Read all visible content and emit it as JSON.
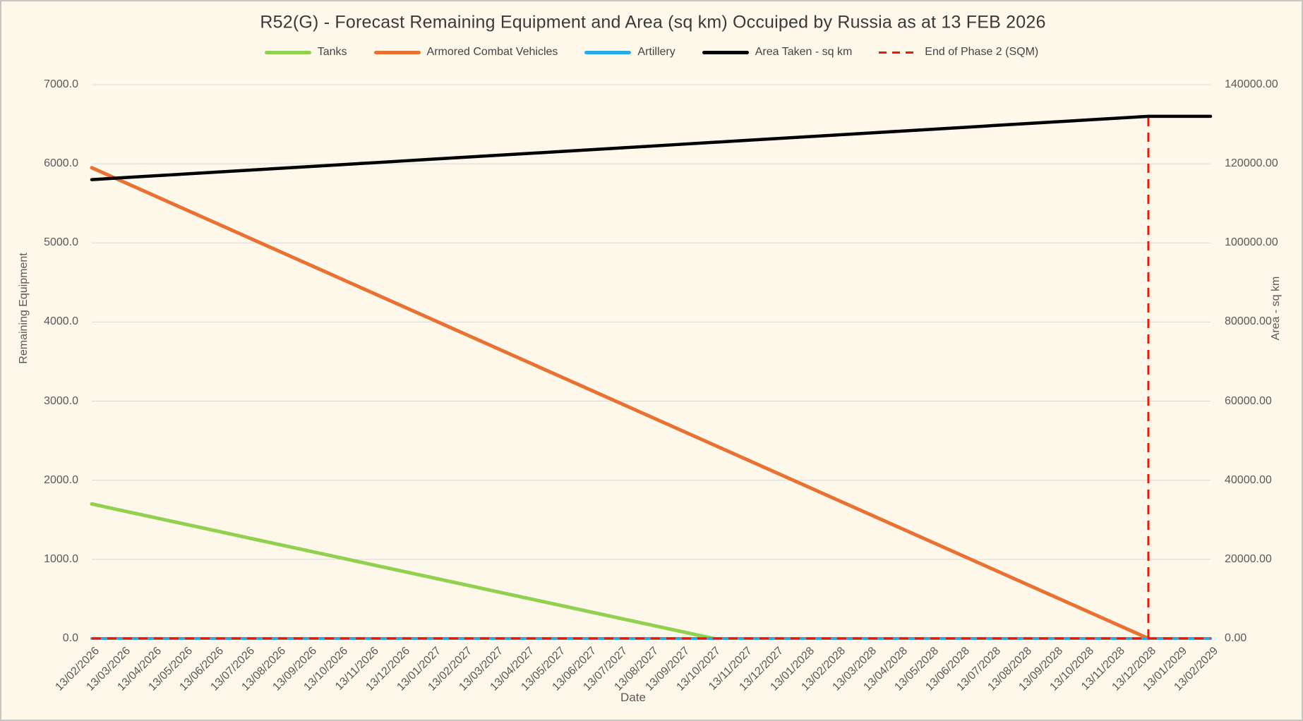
{
  "title": "R52(G) - Forecast Remaining Equipment and Area (sq km) Occuiped by Russia as at 13 FEB 2026",
  "legend": {
    "items": [
      {
        "label": "Tanks",
        "color": "#92D050",
        "dash": false
      },
      {
        "label": "Armored Combat Vehicles",
        "color": "#E97132",
        "dash": false
      },
      {
        "label": "Artillery",
        "color": "#29ABE2",
        "dash": false
      },
      {
        "label": "Area Taken - sq km",
        "color": "#000000",
        "dash": false
      },
      {
        "label": "End of Phase 2 (SQM)",
        "color": "#FF1100",
        "dash": true
      }
    ]
  },
  "axes": {
    "left": {
      "title": "Remaining Equipment",
      "tick_labels": [
        "0.0",
        "1000.0",
        "2000.0",
        "3000.0",
        "4000.0",
        "5000.0",
        "6000.0",
        "7000.0"
      ]
    },
    "right": {
      "title": "Area - sq km",
      "tick_labels": [
        "0.00",
        "20000.00",
        "40000.00",
        "60000.00",
        "80000.00",
        "100000.00",
        "120000.00",
        "140000.00"
      ]
    },
    "x": {
      "title": "Date"
    }
  },
  "chart_data": {
    "type": "line",
    "title": "R52(G) - Forecast Remaining Equipment and Area (sq km) Occuiped by Russia as at 13 FEB 2026",
    "xlabel": "Date",
    "ylabel_left": "Remaining Equipment",
    "ylabel_right": "Area - sq km",
    "ylim_left": [
      0,
      7000
    ],
    "ylim_right": [
      0,
      140000
    ],
    "grid": "horizontal",
    "legend_position": "top",
    "x_labels": [
      "13/02/2026",
      "13/03/2026",
      "13/04/2026",
      "13/05/2026",
      "13/06/2026",
      "13/07/2026",
      "13/08/2026",
      "13/09/2026",
      "13/10/2026",
      "13/11/2026",
      "13/12/2026",
      "13/01/2027",
      "13/02/2027",
      "13/03/2027",
      "13/04/2027",
      "13/05/2027",
      "13/06/2027",
      "13/07/2027",
      "13/08/2027",
      "13/09/2027",
      "13/10/2027",
      "13/11/2027",
      "13/12/2027",
      "13/01/2028",
      "13/02/2028",
      "13/03/2028",
      "13/04/2028",
      "13/05/2028",
      "13/06/2028",
      "13/07/2028",
      "13/08/2028",
      "13/09/2028",
      "13/10/2028",
      "13/11/2028",
      "13/12/2028",
      "13/01/2029",
      "13/02/2029"
    ],
    "series": [
      {
        "name": "Tanks",
        "axis": "left",
        "color": "#92D050",
        "width": 5,
        "values": [
          1700,
          1615,
          1530,
          1445,
          1360,
          1275,
          1190,
          1105,
          1020,
          935,
          850,
          765,
          680,
          595,
          510,
          425,
          340,
          255,
          170,
          85,
          0,
          0,
          0,
          0,
          0,
          0,
          0,
          0,
          0,
          0,
          0,
          0,
          0,
          0,
          0,
          0,
          0
        ]
      },
      {
        "name": "Armored Combat Vehicles",
        "axis": "left",
        "color": "#E97132",
        "width": 5,
        "values": [
          5950,
          5775,
          5600,
          5425,
          5250,
          5075,
          4900,
          4725,
          4550,
          4375,
          4200,
          4025,
          3850,
          3675,
          3500,
          3325,
          3150,
          2975,
          2800,
          2625,
          2450,
          2275,
          2100,
          1925,
          1750,
          1575,
          1400,
          1225,
          1050,
          875,
          700,
          525,
          350,
          175,
          0,
          0,
          0
        ]
      },
      {
        "name": "Artillery",
        "axis": "left",
        "color": "#29ABE2",
        "width": 4,
        "values": [
          0,
          0,
          0,
          0,
          0,
          0,
          0,
          0,
          0,
          0,
          0,
          0,
          0,
          0,
          0,
          0,
          0,
          0,
          0,
          0,
          0,
          0,
          0,
          0,
          0,
          0,
          0,
          0,
          0,
          0,
          0,
          0,
          0,
          0,
          0,
          0,
          0
        ]
      },
      {
        "name": "End of Phase 2 (SQM)",
        "axis": "right",
        "color": "#FF1100",
        "width": 3,
        "dash": [
          13,
          9
        ],
        "render": "baseline_spike",
        "values": [
          0,
          0,
          0,
          0,
          0,
          0,
          0,
          0,
          0,
          0,
          0,
          0,
          0,
          0,
          0,
          0,
          0,
          0,
          0,
          0,
          0,
          0,
          0,
          0,
          0,
          0,
          0,
          0,
          0,
          0,
          0,
          0,
          0,
          0,
          132000,
          0,
          0
        ]
      },
      {
        "name": "Area Taken - sq km",
        "axis": "right",
        "color": "#000000",
        "width": 4.5,
        "values": [
          116000,
          116471,
          116941,
          117412,
          117882,
          118353,
          118824,
          119294,
          119765,
          120235,
          120706,
          121176,
          121647,
          122118,
          122588,
          123059,
          123529,
          124000,
          124471,
          124941,
          125412,
          125882,
          126353,
          126824,
          127294,
          127765,
          128235,
          128706,
          129176,
          129647,
          130118,
          130588,
          131059,
          131529,
          132000,
          132000,
          132000
        ]
      }
    ]
  },
  "colors": {
    "background": "#FDF8EA",
    "gridline": "#D9D9D9",
    "tick_text": "#595959",
    "title_text": "#3A3A3A",
    "border": "#C6C6C3"
  }
}
